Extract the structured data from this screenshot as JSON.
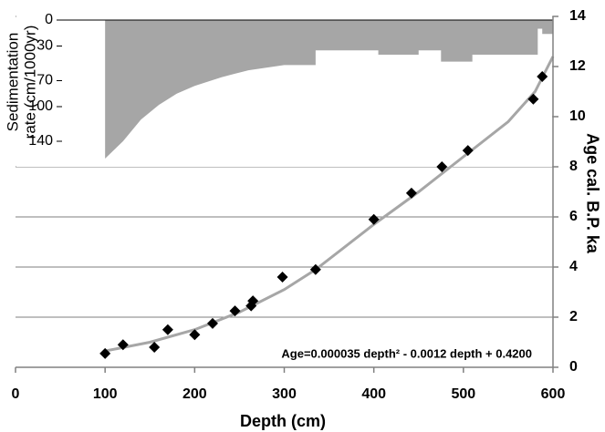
{
  "chart_data": [
    {
      "type": "scatter",
      "xlabel": "Depth (cm)",
      "ylabel": "Age cal. B.P. ka",
      "annotation": "Age=0.000035 depth² - 0.0012 depth + 0.4200",
      "xlim": [
        0,
        600
      ],
      "xticks": [
        0,
        100,
        200,
        300,
        400,
        500,
        600
      ],
      "ylim": [
        0,
        14
      ],
      "yticks": [
        0,
        2,
        4,
        6,
        8,
        10,
        12,
        14
      ],
      "grid": true,
      "series": [
        {
          "type": "line",
          "color": "#a6a6a6",
          "x": [
            100,
            150,
            200,
            250,
            300,
            335,
            400,
            450,
            500,
            550,
            580,
            600
          ],
          "values": [
            0.65,
            1.0,
            1.5,
            2.2,
            3.1,
            3.9,
            5.7,
            7.0,
            8.4,
            9.8,
            11.0,
            12.4
          ]
        },
        {
          "type": "scatter",
          "color": "#000000",
          "x": [
            100,
            120,
            155,
            170,
            200,
            220,
            245,
            263,
            265,
            298,
            335,
            400,
            442,
            476,
            505,
            578,
            588
          ],
          "values": [
            0.55,
            0.9,
            0.8,
            1.5,
            1.3,
            1.75,
            2.25,
            2.45,
            2.65,
            3.6,
            3.9,
            5.9,
            6.95,
            8.0,
            8.65,
            10.7,
            11.6
          ]
        }
      ]
    },
    {
      "type": "area",
      "ylabel": [
        "Sedimentation",
        "rate (cm/1000yr)"
      ],
      "color": "#a6a6a6",
      "ylim": [
        0,
        160
      ],
      "yticks": [
        0,
        30,
        70,
        100,
        140
      ],
      "x": [
        100,
        110,
        120,
        140,
        160,
        180,
        200,
        230,
        260,
        300,
        335,
        335,
        405,
        405,
        450,
        450,
        475,
        475,
        510,
        510,
        583,
        583,
        588,
        588,
        600
      ],
      "values": [
        160,
        150,
        140,
        115,
        98,
        85,
        76,
        66,
        58,
        52,
        52,
        35,
        35,
        40,
        40,
        35,
        35,
        48,
        48,
        40,
        40,
        10,
        10,
        16,
        16
      ]
    }
  ]
}
